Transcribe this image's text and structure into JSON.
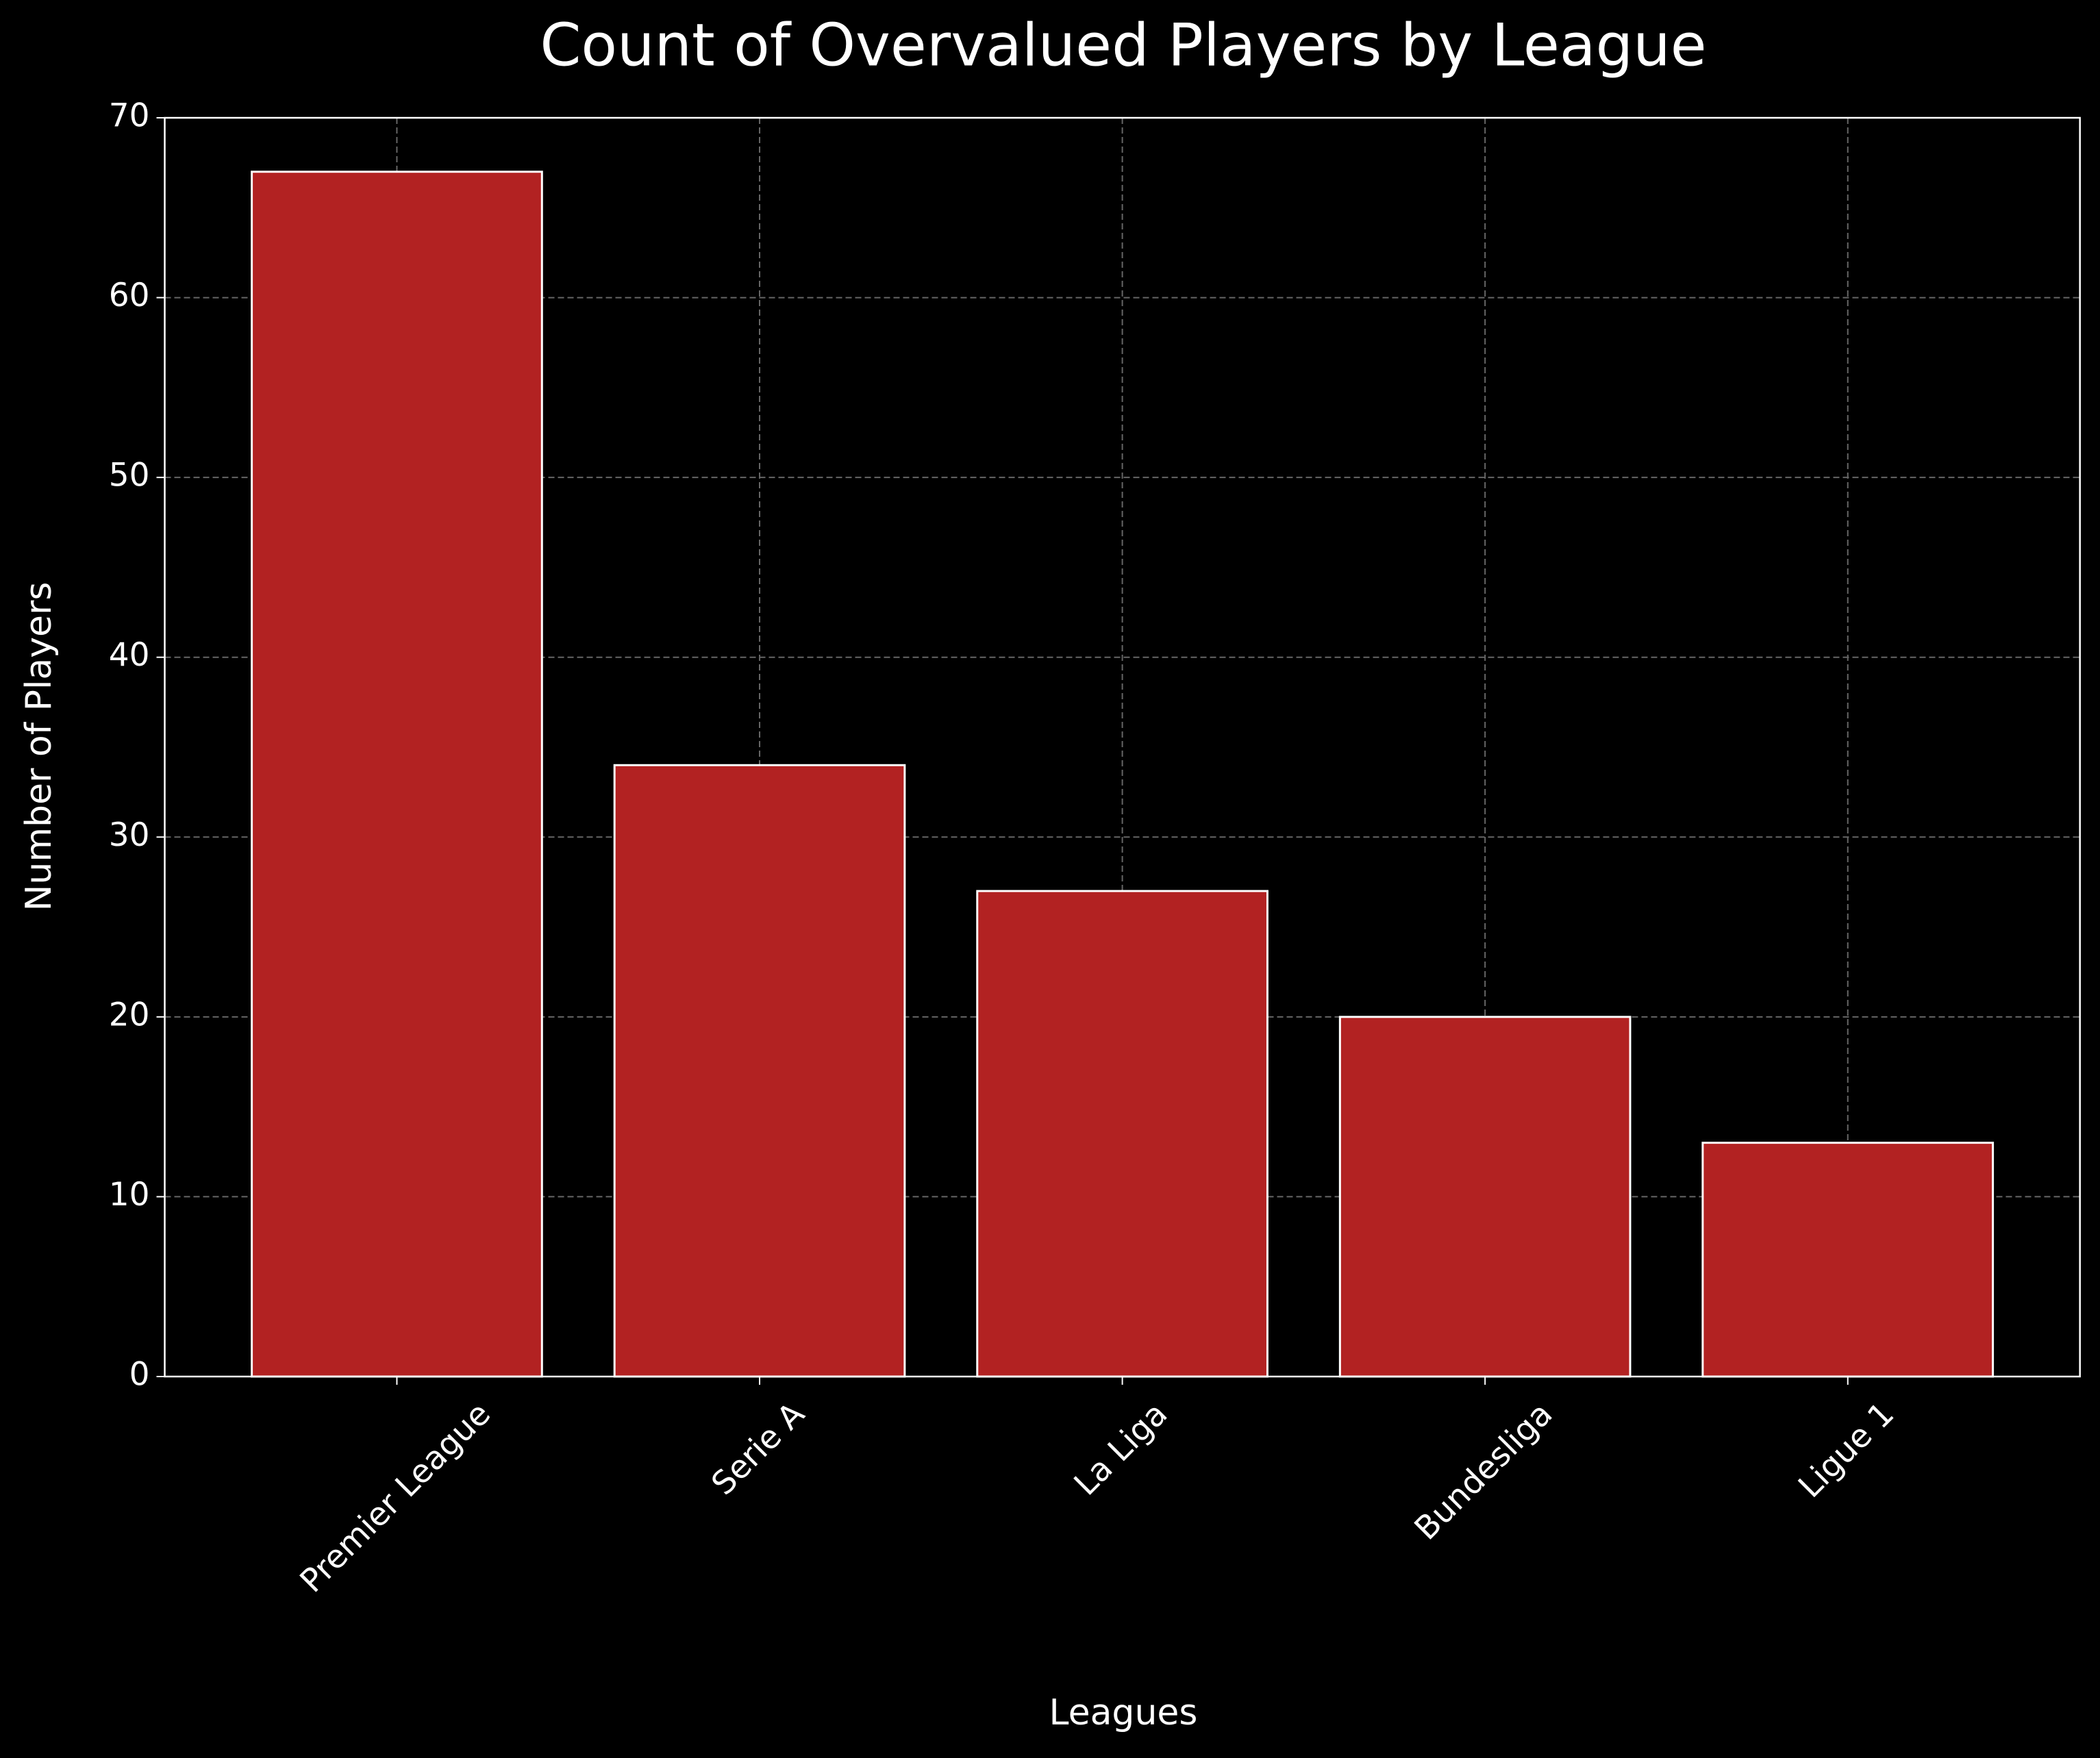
{
  "chart_data": {
    "type": "bar",
    "title": "Count of Overvalued Players by League",
    "x_label": "Leagues",
    "y_label": "Number of Players",
    "categories": [
      "Premier League",
      "Serie A",
      "La Liga",
      "Bundesliga",
      "Ligue 1"
    ],
    "values": [
      67,
      34,
      27,
      20,
      13
    ],
    "color": "#b22222",
    "edgecolor": "#ffffff",
    "ylim": [
      0,
      70
    ],
    "yticks": [
      0,
      10,
      20,
      30,
      40,
      50,
      60,
      70
    ],
    "grid": true
  }
}
